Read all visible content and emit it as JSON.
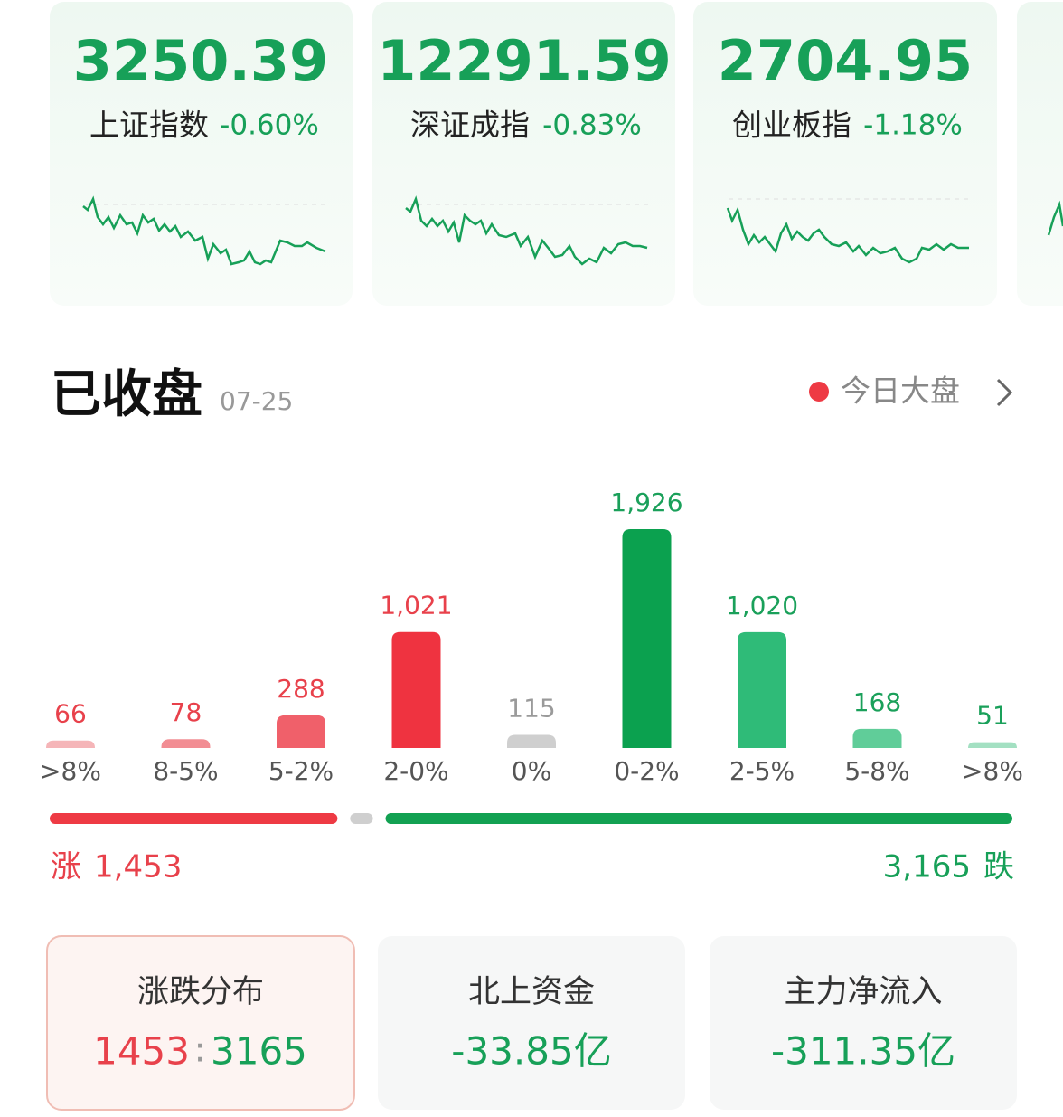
{
  "indices": [
    {
      "value": "3250.39",
      "name": "上证指数",
      "change": "-0.60%"
    },
    {
      "value": "12291.59",
      "name": "深证成指",
      "change": "-0.83%"
    },
    {
      "value": "2704.95",
      "name": "创业板指",
      "change": "-1.18%"
    }
  ],
  "status": {
    "title": "已收盘",
    "date": "07-25",
    "link": "今日大盘"
  },
  "chart_data": {
    "type": "bar",
    "categories": [
      ">8%",
      "8-5%",
      "5-2%",
      "2-0%",
      "0%",
      "0-2%",
      "2-5%",
      "5-8%",
      ">8%"
    ],
    "values": [
      66,
      78,
      288,
      1021,
      115,
      1926,
      1020,
      168,
      51
    ],
    "value_labels": [
      "66",
      "78",
      "288",
      "1,021",
      "115",
      "1,926",
      "1,020",
      "168",
      "51"
    ],
    "colors": [
      "#f5b5b8",
      "#f28d93",
      "#f0606a",
      "#ef3340",
      "#cfcfcf",
      "#0ba14f",
      "#2fbb78",
      "#60cd99",
      "#a3e0c2"
    ],
    "label_colors": [
      "#e8414b",
      "#e8414b",
      "#e8414b",
      "#e8414b",
      "#9a9a9a",
      "#1aa05a",
      "#1aa05a",
      "#1aa05a",
      "#1aa05a"
    ]
  },
  "breadth": {
    "up": {
      "label": "涨",
      "value": 1453,
      "value_label": "1,453"
    },
    "down": {
      "label": "跌",
      "value": 3165,
      "value_label": "3,165"
    }
  },
  "cards": [
    {
      "title": "涨跌分布",
      "up": "1453",
      "down": "3165"
    },
    {
      "title": "北上资金",
      "value": "-33.85亿"
    },
    {
      "title": "主力净流入",
      "value": "-311.35亿"
    }
  ]
}
